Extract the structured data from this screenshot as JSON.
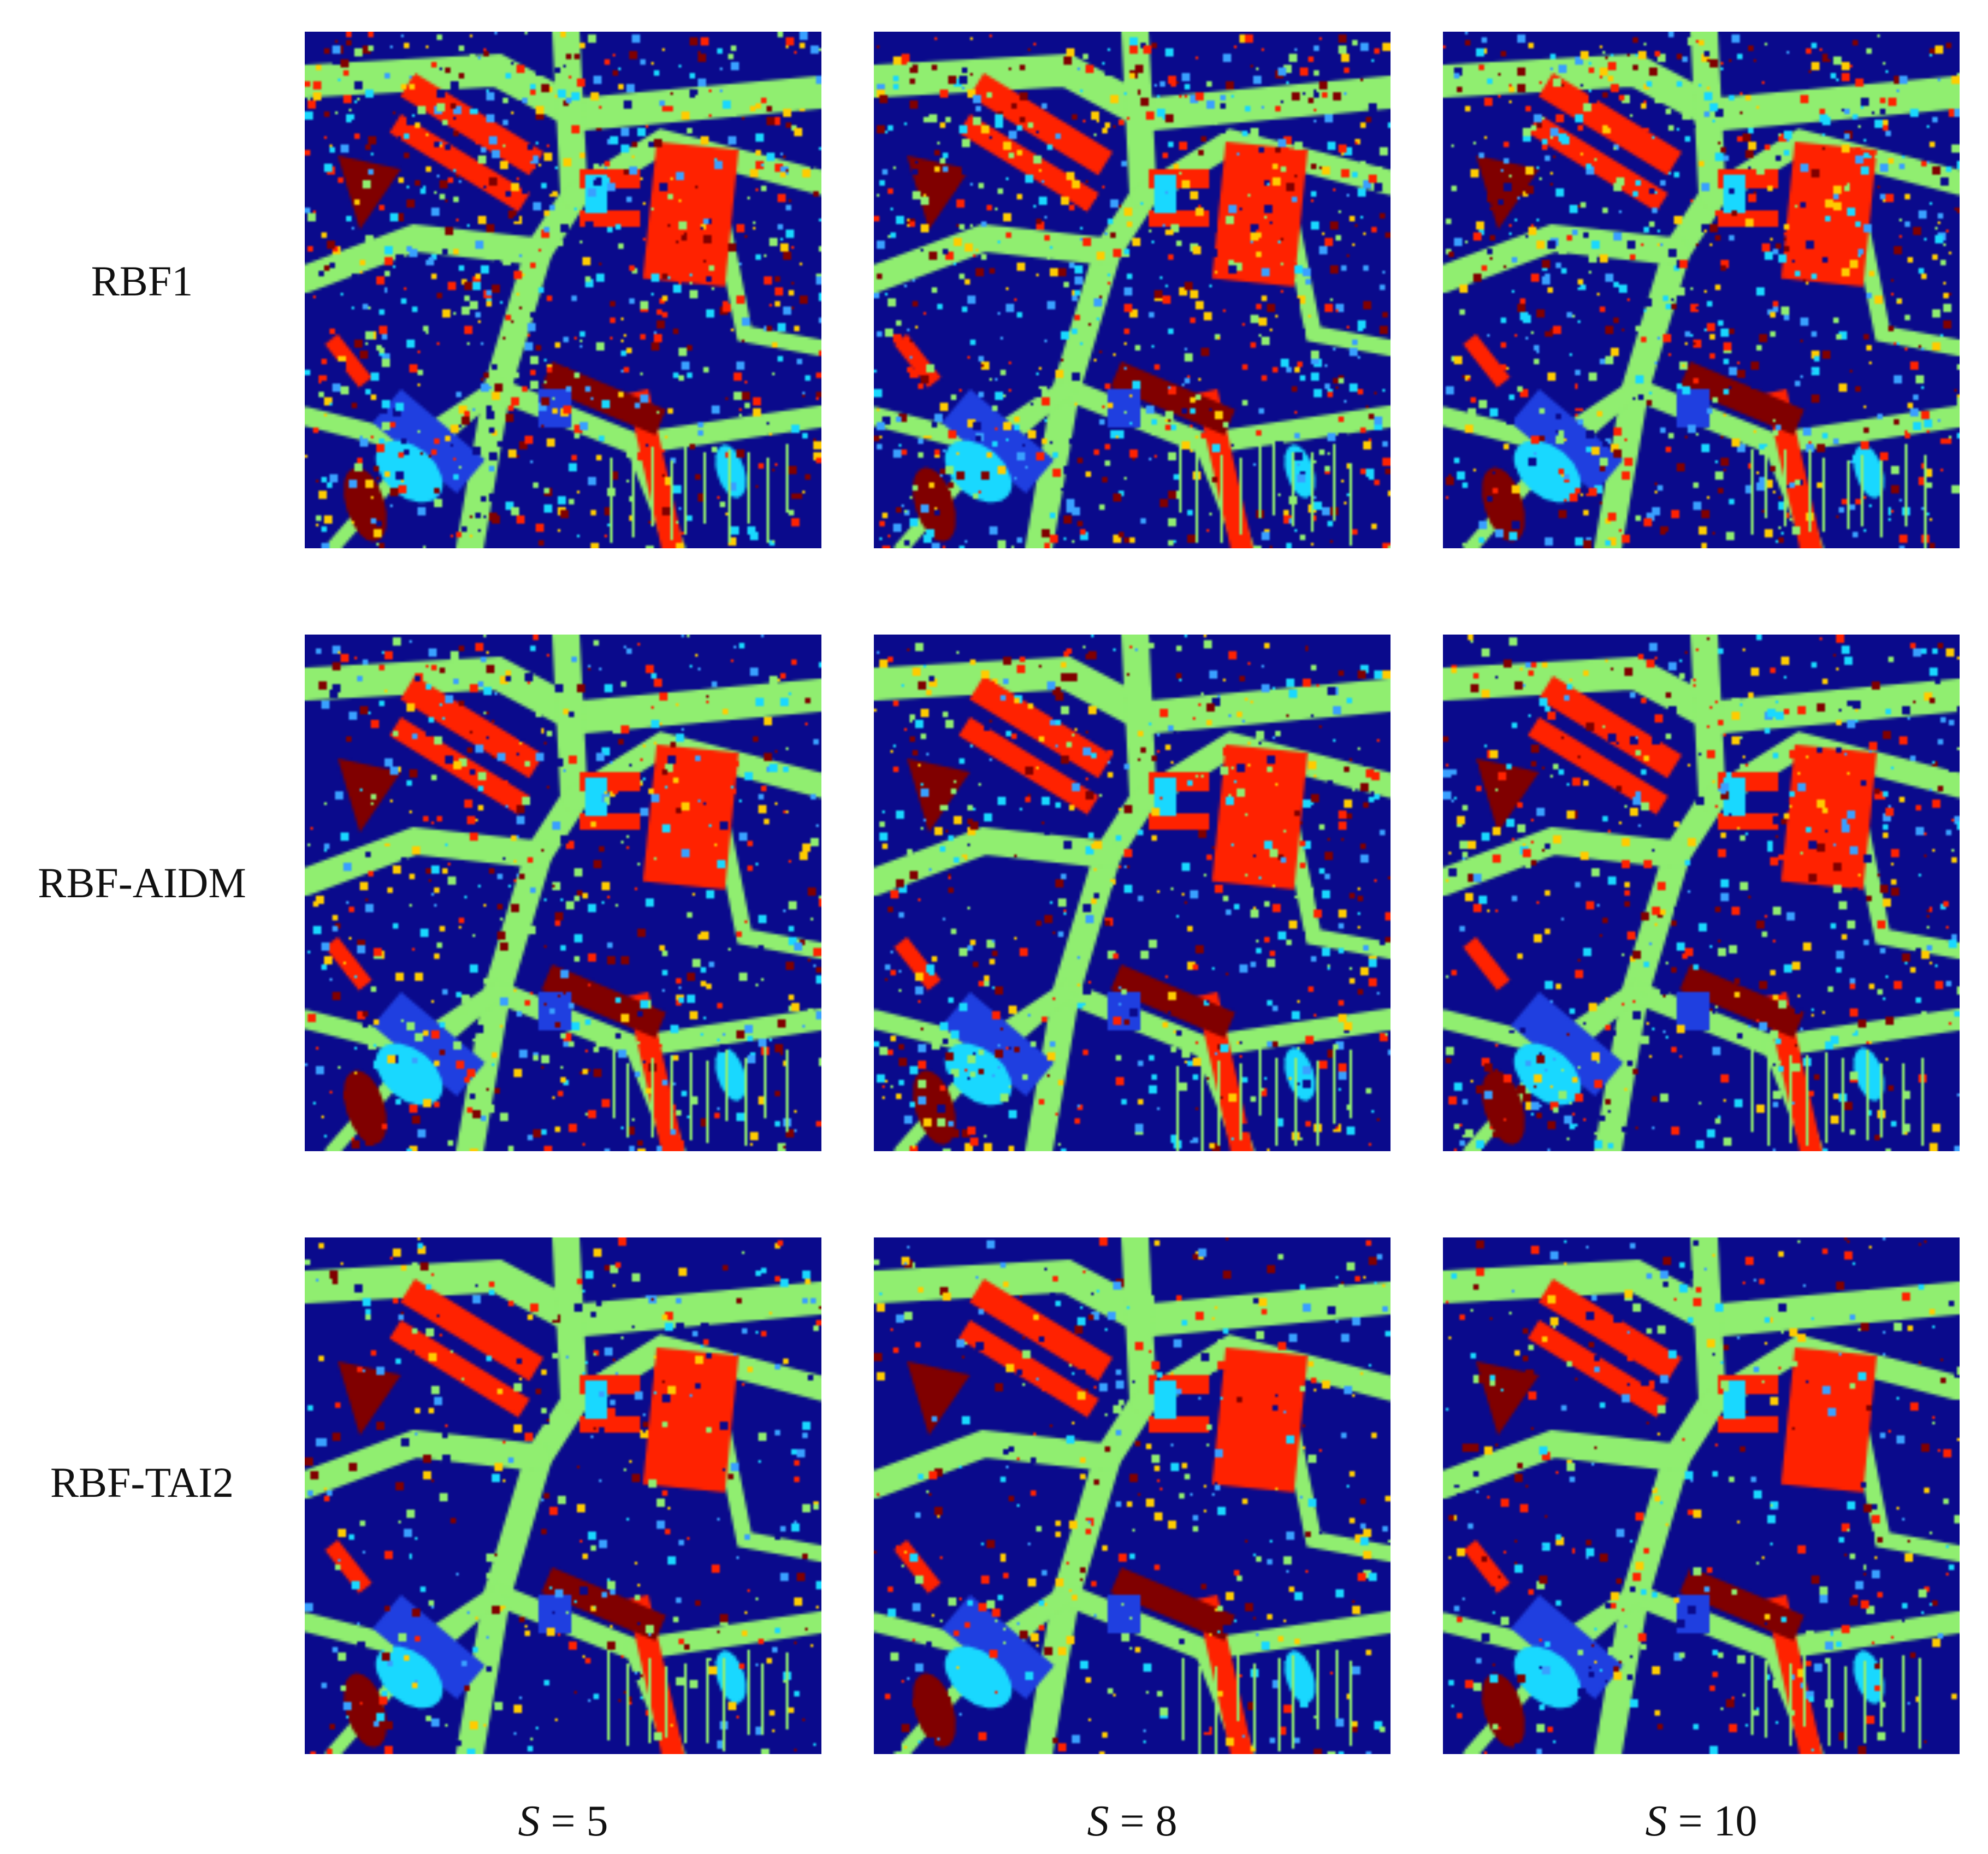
{
  "rows": [
    {
      "label": "RBF1",
      "seed": 11
    },
    {
      "label": "RBF-AIDM",
      "seed": 23
    },
    {
      "label": "RBF-TAI2",
      "seed": 37
    }
  ],
  "columns": [
    {
      "var": "S",
      "eq": " = 5",
      "seed": 5
    },
    {
      "var": "S",
      "eq": " = 8",
      "seed": 8
    },
    {
      "var": "S",
      "eq": " = 10",
      "seed": 10
    }
  ],
  "palette": {
    "background_field": "#0a0a8c",
    "road": "#90ee70",
    "red": "#ff2200",
    "dark_red": "#800000",
    "blue": "#1f3fe0",
    "cyan": "#19d8ff",
    "yellow": "#ffcc00",
    "light_blue": "#39a0ff"
  }
}
